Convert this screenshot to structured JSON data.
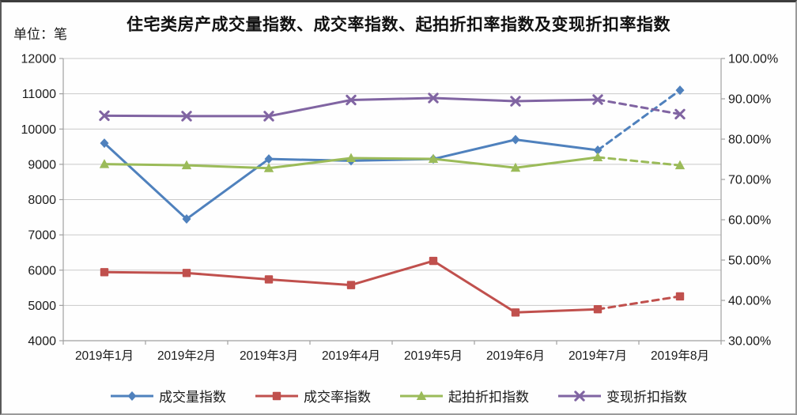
{
  "chart_data": {
    "type": "line",
    "title": "住宅类房产成交量指数、成交率指数、起拍折扣率指数及变现折扣率指数",
    "unit_label": "单位：笔",
    "categories": [
      "2019年1月",
      "2019年2月",
      "2019年3月",
      "2019年4月",
      "2019年5月",
      "2019年6月",
      "2019年7月",
      "2019年8月"
    ],
    "left_axis": {
      "min": 4000,
      "max": 12000,
      "step": 1000,
      "tick_labels": [
        "12000",
        "11000",
        "10000",
        "9000",
        "8000",
        "7000",
        "6000",
        "5000",
        "4000"
      ]
    },
    "right_axis": {
      "min": 30,
      "max": 100,
      "step": 10,
      "tick_labels": [
        "100.00%",
        "90.00%",
        "80.00%",
        "70.00%",
        "60.00%",
        "50.00%",
        "40.00%",
        "30.00%"
      ]
    },
    "grid": true,
    "legend_position": "bottom",
    "series": [
      {
        "name": "成交量指数",
        "axis": "left",
        "color": "#4F81BD",
        "marker": "diamond",
        "values": [
          9600,
          7450,
          9150,
          9100,
          9150,
          9700,
          9400,
          11100
        ],
        "last_segment_dashed": true
      },
      {
        "name": "成交率指数",
        "axis": "right",
        "color": "#C0504D",
        "marker": "square",
        "values": [
          47.0,
          46.8,
          45.2,
          43.8,
          49.8,
          37.0,
          37.8,
          41.0
        ],
        "last_segment_dashed": true
      },
      {
        "name": "起拍折扣指数",
        "axis": "right",
        "color": "#9BBB59",
        "marker": "triangle",
        "values": [
          73.8,
          73.5,
          72.8,
          75.3,
          75.1,
          72.9,
          75.5,
          73.5
        ],
        "last_segment_dashed": true
      },
      {
        "name": "变现折扣指数",
        "axis": "right",
        "color": "#8064A2",
        "marker": "x",
        "values": [
          85.8,
          85.7,
          85.7,
          89.7,
          90.2,
          89.4,
          89.8,
          86.2
        ],
        "last_segment_dashed": true
      }
    ],
    "colors": {
      "grid": "#c9c9c9",
      "axis": "#a0a0a0",
      "tick_text": "#1a1a1a"
    }
  }
}
